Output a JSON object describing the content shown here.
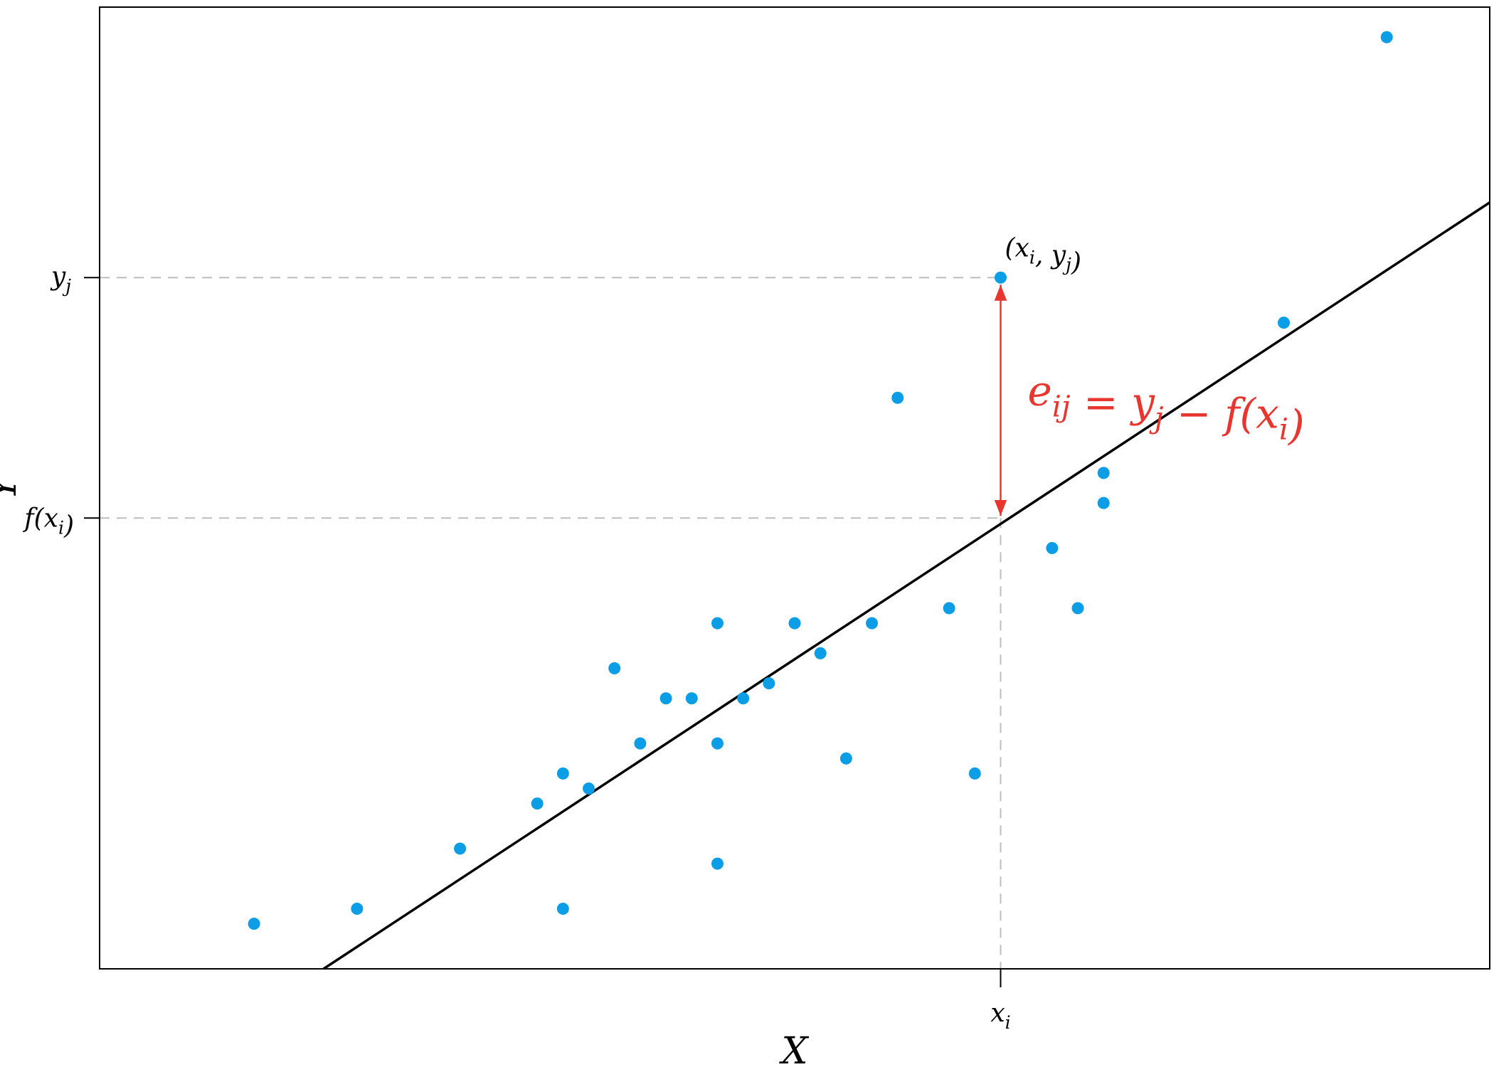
{
  "colors": {
    "points": "#0b9ee6",
    "line": "#000000",
    "residual": "#e8362f",
    "guides": "#bdbdbd",
    "frame": "#000000"
  },
  "chart_data": {
    "type": "scatter",
    "title": "",
    "xlabel": "X",
    "ylabel": "Y",
    "xlim": [
      -6,
      48
    ],
    "ylim": [
      -3,
      61
    ],
    "grid": false,
    "points": [
      {
        "x": 0,
        "y": 0
      },
      {
        "x": 4,
        "y": 1
      },
      {
        "x": 8,
        "y": 5
      },
      {
        "x": 11,
        "y": 8
      },
      {
        "x": 12,
        "y": 1
      },
      {
        "x": 12,
        "y": 10
      },
      {
        "x": 13,
        "y": 9
      },
      {
        "x": 14,
        "y": 17
      },
      {
        "x": 15,
        "y": 12
      },
      {
        "x": 16,
        "y": 15
      },
      {
        "x": 17,
        "y": 15
      },
      {
        "x": 18,
        "y": 4
      },
      {
        "x": 18,
        "y": 12
      },
      {
        "x": 18,
        "y": 20
      },
      {
        "x": 19,
        "y": 15
      },
      {
        "x": 20,
        "y": 16
      },
      {
        "x": 21,
        "y": 20
      },
      {
        "x": 22,
        "y": 18
      },
      {
        "x": 23,
        "y": 11
      },
      {
        "x": 24,
        "y": 20
      },
      {
        "x": 25,
        "y": 35
      },
      {
        "x": 27,
        "y": 21
      },
      {
        "x": 28,
        "y": 10
      },
      {
        "x": 29,
        "y": 43
      },
      {
        "x": 31,
        "y": 25
      },
      {
        "x": 32,
        "y": 21
      },
      {
        "x": 33,
        "y": 28
      },
      {
        "x": 33,
        "y": 30
      },
      {
        "x": 40,
        "y": 40
      },
      {
        "x": 44,
        "y": 59
      }
    ],
    "fitted_line": {
      "x": [
        2.7,
        48
      ],
      "y": [
        -3,
        48
      ]
    },
    "highlight": {
      "x": 29,
      "y": 43,
      "fx": 27,
      "point_label": "(x_i, y_j)",
      "x_tick_label": "x_i",
      "y_tick_label": "y_j",
      "fx_tick_label": "f(x_i)",
      "residual_label": "e_ij = y_j − f(x_i)"
    }
  }
}
